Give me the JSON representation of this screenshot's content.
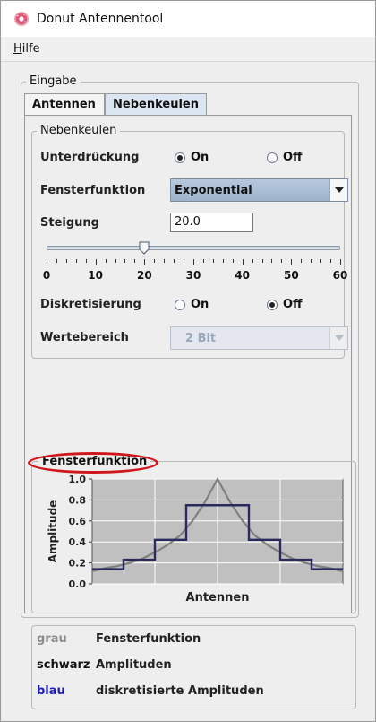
{
  "window": {
    "title": "Donut Antennentool",
    "icon": "donut-icon"
  },
  "menu": {
    "help_mnemonic": "H",
    "help_rest": "ilfe"
  },
  "input_group": {
    "label": "Eingabe",
    "tabs": [
      {
        "label": "Antennen",
        "active": false
      },
      {
        "label": "Nebenkeulen",
        "active": true
      }
    ]
  },
  "sidelobes": {
    "group_label": "Nebenkeulen",
    "suppression": {
      "label": "Unterdrückung",
      "on": "On",
      "off": "Off",
      "selected": "On"
    },
    "window_function": {
      "label": "Fensterfunktion",
      "value": "Exponential"
    },
    "slope": {
      "label": "Steigung",
      "value": "20.0"
    },
    "slider": {
      "min": 0,
      "max": 60,
      "value": 20,
      "ticks": [
        "0",
        "10",
        "20",
        "30",
        "40",
        "50",
        "60"
      ]
    },
    "discretization": {
      "label": "Diskretisierung",
      "on": "On",
      "off": "Off",
      "selected": "Off"
    },
    "value_range": {
      "label": "Wertebereich",
      "value": "2 Bit",
      "enabled": false
    }
  },
  "plot_group": {
    "label": "Fensterfunktion"
  },
  "chart_data": {
    "type": "line",
    "xlabel": "Antennen",
    "ylabel": "Amplitude",
    "ylim": [
      0.0,
      1.0
    ],
    "yticks": [
      "0.0",
      "0.2",
      "0.4",
      "0.6",
      "0.8",
      "1.0"
    ],
    "grid": true,
    "background": "#c0c0c0",
    "series": [
      {
        "color": "#808080",
        "x": [
          0.0,
          0.05,
          0.1,
          0.15,
          0.2,
          0.25,
          0.3,
          0.35,
          0.4,
          0.45,
          0.5,
          0.55,
          0.6,
          0.65,
          0.7,
          0.75,
          0.8,
          0.85,
          0.9,
          0.95,
          1.0
        ],
        "values": [
          0.12,
          0.15,
          0.17,
          0.2,
          0.24,
          0.3,
          0.37,
          0.46,
          0.6,
          0.78,
          1.0,
          0.78,
          0.6,
          0.46,
          0.37,
          0.3,
          0.24,
          0.2,
          0.17,
          0.15,
          0.12
        ]
      },
      {
        "color": "#2a2a5e",
        "steps": [
          [
            0.0,
            0.14
          ],
          [
            0.125,
            0.14
          ],
          [
            0.125,
            0.23
          ],
          [
            0.25,
            0.23
          ],
          [
            0.25,
            0.42
          ],
          [
            0.375,
            0.42
          ],
          [
            0.375,
            0.75
          ],
          [
            0.625,
            0.75
          ],
          [
            0.625,
            0.42
          ],
          [
            0.75,
            0.42
          ],
          [
            0.75,
            0.23
          ],
          [
            0.875,
            0.23
          ],
          [
            0.875,
            0.14
          ],
          [
            1.0,
            0.14
          ]
        ]
      }
    ]
  },
  "legend": [
    {
      "key": "grau",
      "color": "#8c8c8c",
      "desc": "Fensterfunktion"
    },
    {
      "key": "schwarz",
      "color": "#111111",
      "desc": "Amplituden"
    },
    {
      "key": "blau",
      "color": "#1d1db8",
      "desc": "diskretisierte Amplituden"
    }
  ]
}
